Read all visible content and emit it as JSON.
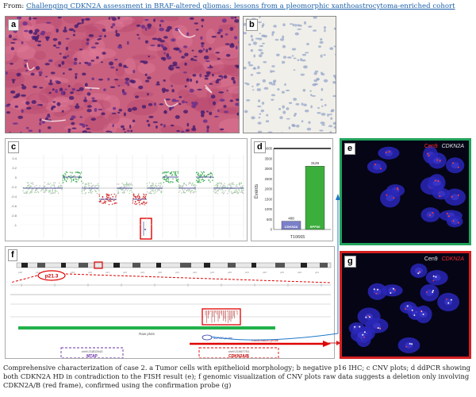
{
  "header": {
    "from_label": "From:",
    "article_link": "Challenging CDKN2A assessment in BRAF-altered gliomas: lessons from a pleomorphic xanthoastrocytoma-enriched cohort"
  },
  "panels": {
    "a": {
      "letter": "a"
    },
    "b": {
      "letter": "b"
    },
    "c": {
      "letter": "c"
    },
    "d": {
      "letter": "d",
      "sample": "T10665",
      "ylabel": "Events",
      "bars": [
        {
          "label": "CDKN2A",
          "value": 408,
          "color": "#7a7fc9"
        },
        {
          "label": "RPP30",
          "value": 3129,
          "color": "#3cae3c"
        }
      ],
      "yticks": [
        "0",
        "500",
        "1000",
        "1500",
        "2000",
        "2500",
        "3000",
        "3500",
        "4000"
      ],
      "ymax": 4000
    },
    "e": {
      "letter": "e",
      "probe1": "Cen9",
      "probe2": "CDKN2A",
      "probe1_color": "#ff2a2a",
      "probe2_color": "#e8e8e8"
    },
    "f": {
      "letter": "f",
      "band_label": "p21.3",
      "track_label": "Raw plots",
      "mtap_label": "MTAP",
      "mtap_id": "chr9:21802543",
      "cdkn2a_label": "CDKN2A/B",
      "cdkn2a_id": "chr9:21967751",
      "ddpcr_label": "ddPCR probe",
      "conf_label": "Confirmation probe"
    },
    "g": {
      "letter": "g",
      "probe1": "Cen9",
      "probe2": "CDKN2A",
      "probe1_color": "#e8e8e8",
      "probe2_color": "#ff2a2a"
    }
  },
  "caption": {
    "text": "Comprehensive characterization of case 2. a Tumor cells with epithelioid morphology; b negative p16 IHC; c CNV plots; d ddPCR showing both CDKN2A HD in contradiction to the FISH result (e); f genomic visualization of CNV plots raw data suggests a deletion only involving CDKN2A/B (red frame), confirmed using the confirmation probe (g)"
  }
}
